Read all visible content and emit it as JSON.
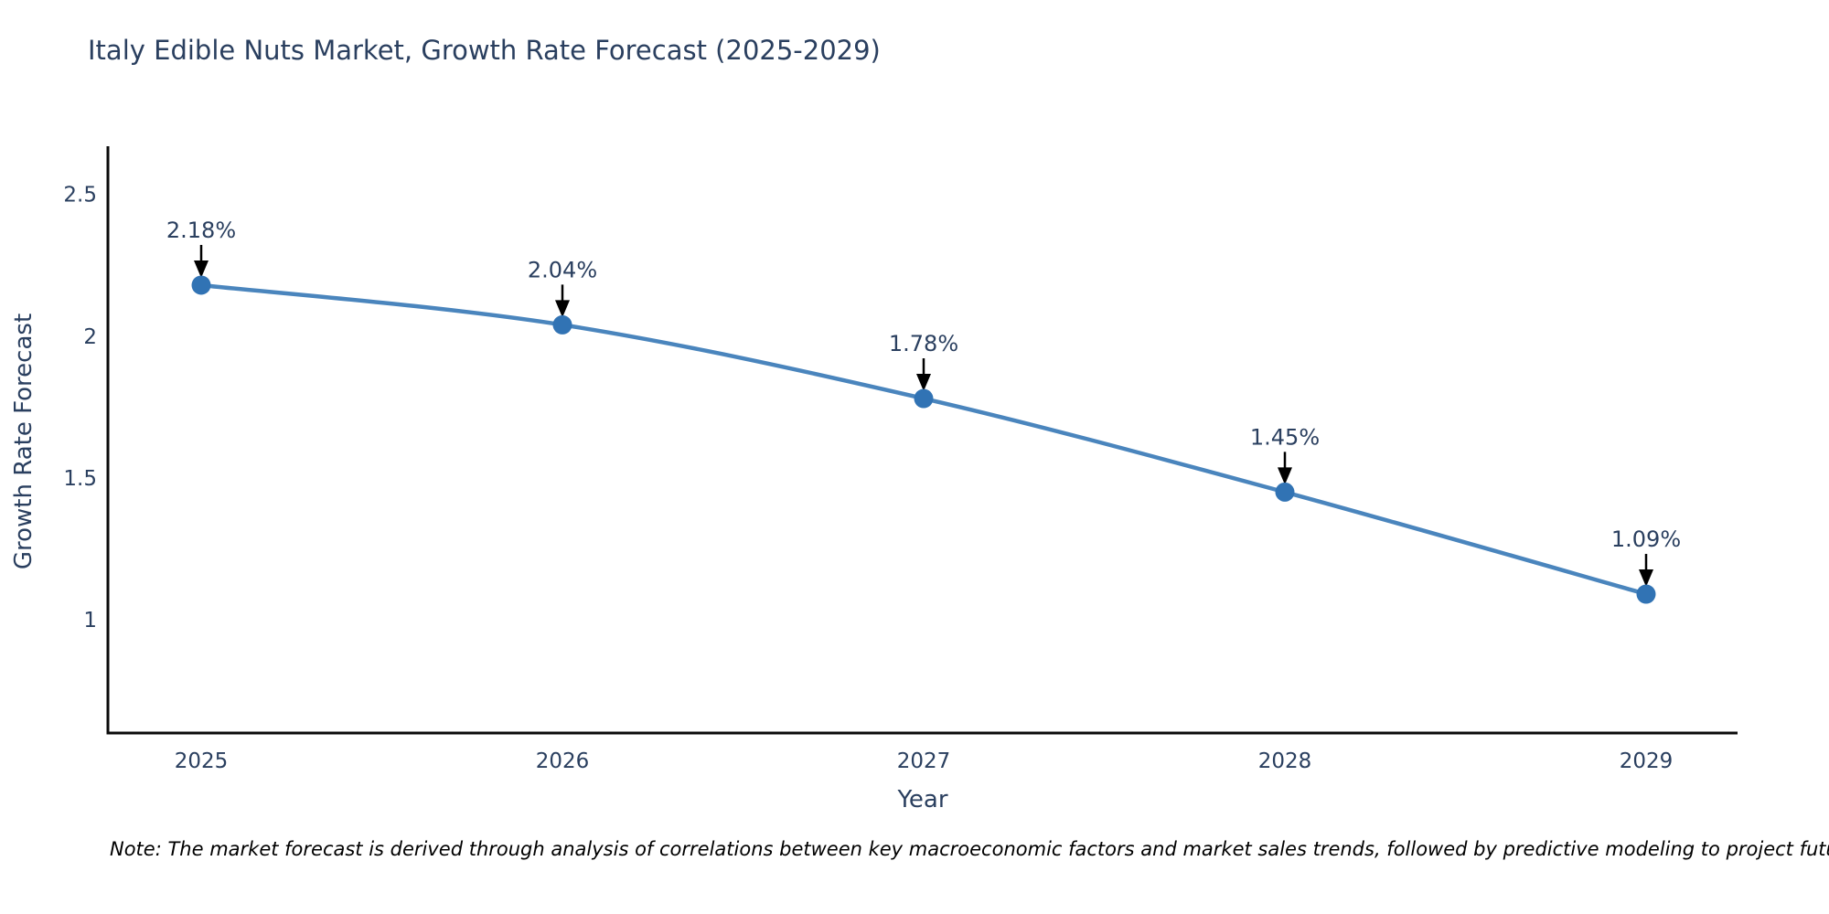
{
  "header": {
    "title": "Italy Edible Nuts Market, Growth Rate Forecast (2025-2029)"
  },
  "footer": {
    "note": "Note: The market forecast is derived through analysis of correlations between key macroeconomic factors and market sales trends, followed by predictive modeling to project future sales"
  },
  "chart_data": {
    "type": "line",
    "title": "Italy Edible Nuts Market, Growth Rate Forecast (2025-2029)",
    "xlabel": "Year",
    "ylabel": "Growth Rate Forecast",
    "categories": [
      "2025",
      "2026",
      "2027",
      "2028",
      "2029"
    ],
    "series": [
      {
        "name": "Growth Rate Forecast",
        "values": [
          2.18,
          2.04,
          1.78,
          1.45,
          1.09
        ]
      }
    ],
    "point_labels": [
      "2.18%",
      "2.04%",
      "1.78%",
      "1.45%",
      "1.09%"
    ],
    "yticks": [
      2.5,
      2,
      1.5,
      1
    ],
    "ylim": [
      0.6,
      2.67
    ],
    "line_shape": "spline",
    "grid": false,
    "legend": "none",
    "colors": {
      "line": "#4a85bd",
      "marker": "#3173b4",
      "text": "#2a3f5f",
      "axis": "#0a0a0a",
      "annotation_arrow": "#000000",
      "note_text": "#000000"
    }
  }
}
